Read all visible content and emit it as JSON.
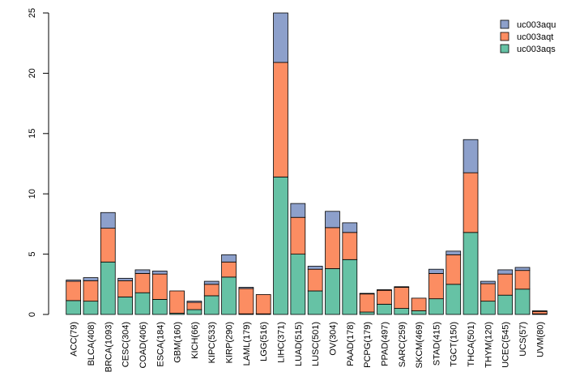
{
  "chart_data": {
    "type": "bar",
    "stacked": true,
    "title": "",
    "xlabel": "",
    "ylabel": "",
    "ylim": [
      0,
      25
    ],
    "yticks": [
      0,
      5,
      10,
      15,
      20,
      25
    ],
    "categories": [
      "ACC(79)",
      "BLCA(408)",
      "BRCA(1093)",
      "CESC(304)",
      "COAD(406)",
      "ESCA(184)",
      "GBM(160)",
      "KICH(66)",
      "KIPC(533)",
      "KIRP(290)",
      "LAML(179)",
      "LGG(516)",
      "LIHC(371)",
      "LUAD(515)",
      "LUSC(501)",
      "OV(304)",
      "PAAD(178)",
      "PCPG(179)",
      "PPAD(497)",
      "SARC(259)",
      "SKCM(469)",
      "STAD(415)",
      "TGCT(150)",
      "THCA(501)",
      "THYM(120)",
      "UCEC(545)",
      "UCS(57)",
      "UVM(80)"
    ],
    "series": [
      {
        "name": "uc003aqs",
        "color": "#66c2a5",
        "values": [
          1.15,
          1.1,
          4.35,
          1.45,
          1.8,
          1.25,
          0.1,
          0.4,
          1.55,
          3.1,
          0.05,
          0.05,
          11.4,
          5.0,
          1.95,
          3.8,
          4.55,
          0.2,
          0.85,
          0.5,
          0.3,
          1.3,
          2.5,
          6.8,
          1.1,
          1.6,
          2.1,
          0.05
        ]
      },
      {
        "name": "uc003aqt",
        "color": "#fc8d62",
        "values": [
          1.6,
          1.7,
          2.8,
          1.35,
          1.6,
          2.1,
          1.85,
          0.6,
          0.95,
          1.25,
          2.1,
          1.6,
          9.5,
          3.05,
          1.8,
          3.4,
          2.25,
          1.5,
          1.15,
          1.75,
          1.05,
          2.1,
          2.45,
          4.95,
          1.45,
          1.75,
          1.55,
          0.2
        ]
      },
      {
        "name": "uc003aqu",
        "color": "#8da0cb",
        "values": [
          0.1,
          0.25,
          1.3,
          0.2,
          0.3,
          0.25,
          0.0,
          0.1,
          0.25,
          0.6,
          0.1,
          0.0,
          4.1,
          1.15,
          0.25,
          1.35,
          0.8,
          0.05,
          0.05,
          0.05,
          0.0,
          0.35,
          0.3,
          2.75,
          0.2,
          0.35,
          0.25,
          0.05
        ]
      }
    ],
    "legend_order": [
      "uc003aqu",
      "uc003aqt",
      "uc003aqs"
    ],
    "legend_position": "top-right"
  }
}
